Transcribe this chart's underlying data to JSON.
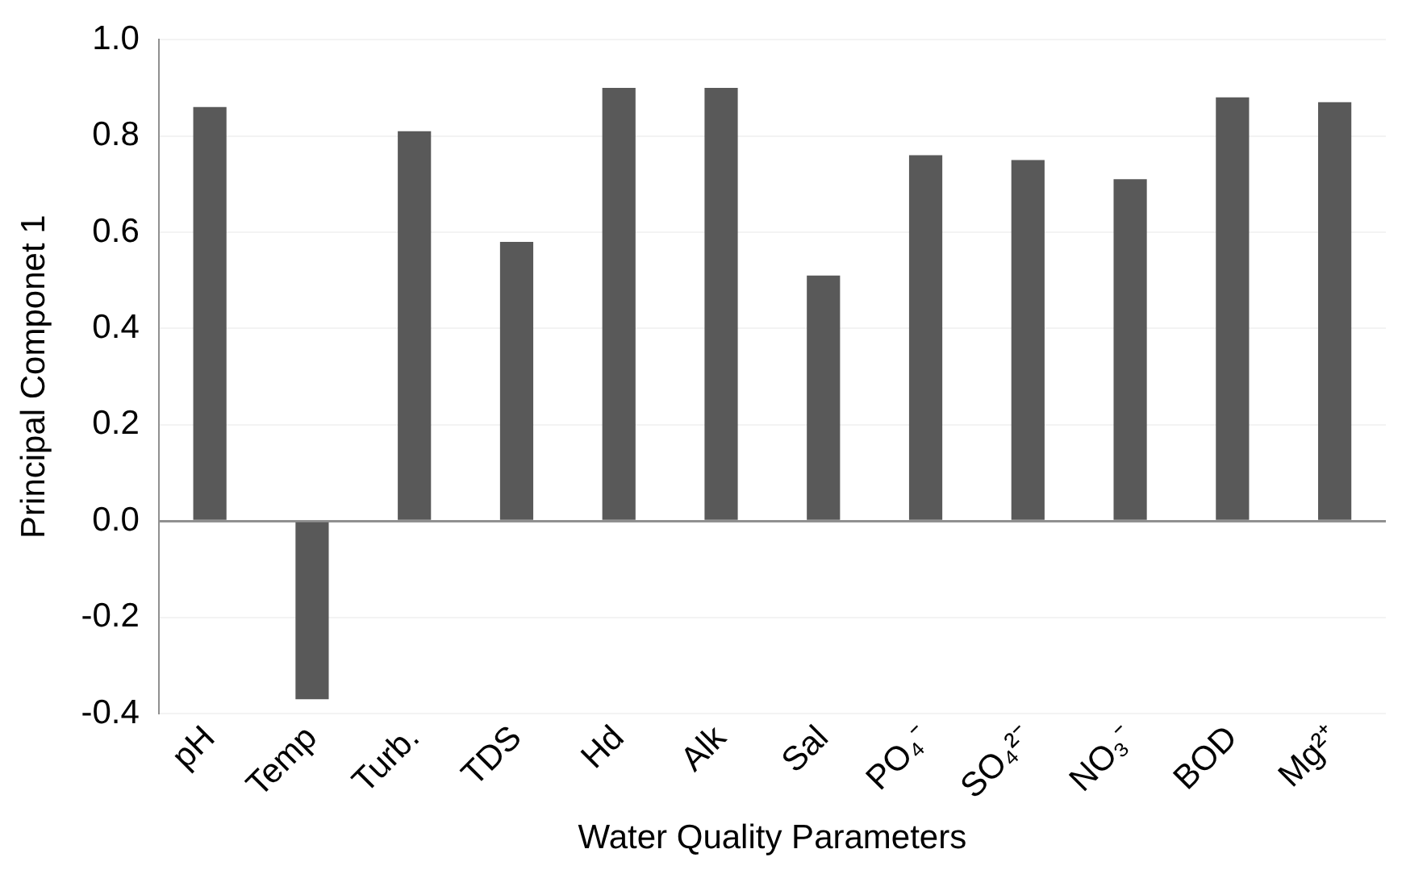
{
  "chart_data": {
    "type": "bar",
    "xlabel": "Water Quality Parameters",
    "ylabel": "Principal Componet 1",
    "categories": [
      "pH",
      "Temp",
      "Turb.",
      "TDS",
      "Hd",
      "Alk",
      "Sal",
      "PO₄⁻",
      "SO₄²⁻",
      "NO₃⁻",
      "BOD",
      "Mg²⁺"
    ],
    "values": [
      0.86,
      -0.37,
      0.81,
      0.58,
      0.9,
      0.9,
      0.51,
      0.76,
      0.75,
      0.71,
      0.88,
      0.87
    ],
    "color": "#595959",
    "ylim": [
      -0.4,
      1.0
    ],
    "yticks": [
      {
        "value": -0.4,
        "label": "-0.4"
      },
      {
        "value": -0.2,
        "label": "-0.2"
      },
      {
        "value": 0,
        "label": "0.0"
      },
      {
        "value": 0.2,
        "label": "0.2"
      },
      {
        "value": 0.4,
        "label": "0.4"
      },
      {
        "value": 0.6,
        "label": "0.6"
      },
      {
        "value": 0.8,
        "label": "0.8"
      },
      {
        "value": 1.0,
        "label": "1.0"
      }
    ],
    "grid": "y",
    "legend": false
  }
}
